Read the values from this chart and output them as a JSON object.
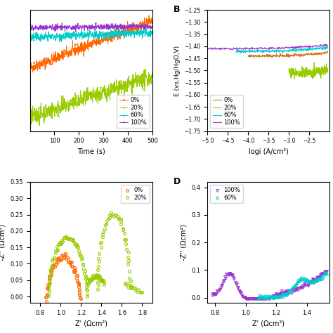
{
  "panel_A": {
    "xlabel": "Time (s)",
    "xlim": [
      0,
      500
    ],
    "xticks": [
      100,
      200,
      300,
      400,
      500
    ],
    "series_A": [
      {
        "label": "0%",
        "y0": -1.455,
        "y1": -1.388,
        "noise": 0.004,
        "color": "#FF6600",
        "marker": "o"
      },
      {
        "label": "20%",
        "y0": -1.525,
        "y1": -1.468,
        "noise": 0.006,
        "color": "#99CC00",
        "marker": "^"
      },
      {
        "label": "60%",
        "y0": -1.412,
        "y1": -1.405,
        "noise": 0.003,
        "color": "#00CCCC",
        "marker": ">"
      },
      {
        "label": "100%",
        "y0": -1.398,
        "y1": -1.396,
        "noise": 0.002,
        "color": "#9933CC",
        "marker": "v"
      }
    ]
  },
  "panel_B": {
    "xlabel": "logi (A/cm²)",
    "ylabel": "E (vs.Hg/HgO,V)",
    "xlim": [
      -5.0,
      -2.0
    ],
    "ylim": [
      -1.75,
      -1.25
    ],
    "xticks": [
      -5.0,
      -4.5,
      -4.0,
      -3.5,
      -3.0,
      -2.5
    ],
    "yticks": [
      -1.75,
      -1.7,
      -1.65,
      -1.6,
      -1.55,
      -1.5,
      -1.45,
      -1.4,
      -1.35,
      -1.3,
      -1.25
    ],
    "series_B": [
      {
        "label": "0%",
        "x0": -4.0,
        "x1": -2.05,
        "yval": -1.44,
        "noise": 0.003,
        "color": "#CC7722"
      },
      {
        "label": "20%",
        "x0": -3.0,
        "x1": -2.05,
        "yval": -1.51,
        "noise": 0.01,
        "color": "#99CC00"
      },
      {
        "label": "60%",
        "x0": -4.3,
        "x1": -2.05,
        "yval": -1.42,
        "noise": 0.003,
        "color": "#00CCCC"
      },
      {
        "label": "100%",
        "x0": -5.0,
        "x1": -2.05,
        "yval": -1.41,
        "noise": 0.002,
        "color": "#9933CC"
      }
    ]
  },
  "panel_C": {
    "xlabel": "Z' (Ωcm²)",
    "ylabel": "-Z'' (Ωcm²)",
    "xlim": [
      0.7,
      1.9
    ],
    "ylim": [
      -0.02,
      0.35
    ],
    "xticks": [
      0.8,
      1.0,
      1.2,
      1.4,
      1.6,
      1.8
    ]
  },
  "panel_D": {
    "xlabel": "Z' (Ωcm²)",
    "ylabel": "-Z'' (Ωcm²)",
    "xlim": [
      0.75,
      1.55
    ],
    "ylim": [
      -0.02,
      0.42
    ],
    "xticks": [
      0.8,
      1.0,
      1.2,
      1.4
    ],
    "yticks": [
      0.0,
      0.1,
      0.2,
      0.3,
      0.4
    ]
  }
}
